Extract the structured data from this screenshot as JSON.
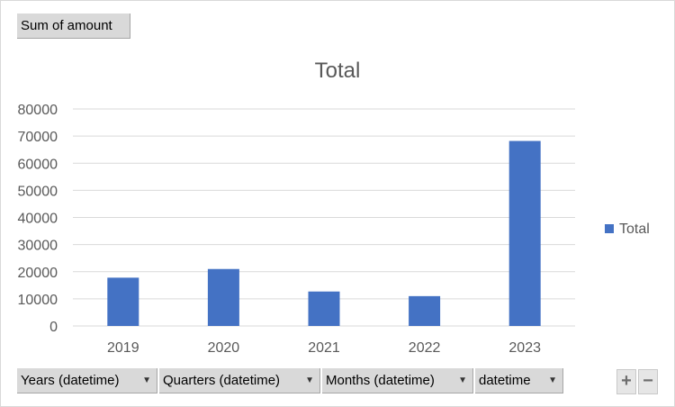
{
  "pivot": {
    "value_field": "Sum of amount",
    "axis_fields": [
      {
        "label": "Years (datetime)"
      },
      {
        "label": "Quarters (datetime)"
      },
      {
        "label": "Months (datetime)"
      },
      {
        "label": "datetime"
      }
    ],
    "expand_label": "+",
    "collapse_label": "−"
  },
  "chart_data": {
    "type": "bar",
    "title": "Total",
    "categories": [
      "2019",
      "2020",
      "2021",
      "2022",
      "2023"
    ],
    "series": [
      {
        "name": "Total",
        "values": [
          17800,
          21000,
          12700,
          11000,
          68200
        ],
        "color": "#4472C4"
      }
    ],
    "ylim": [
      0,
      80000
    ],
    "yticks": [
      0,
      10000,
      20000,
      30000,
      40000,
      50000,
      60000,
      70000,
      80000
    ],
    "grid": true,
    "legend": "right"
  }
}
